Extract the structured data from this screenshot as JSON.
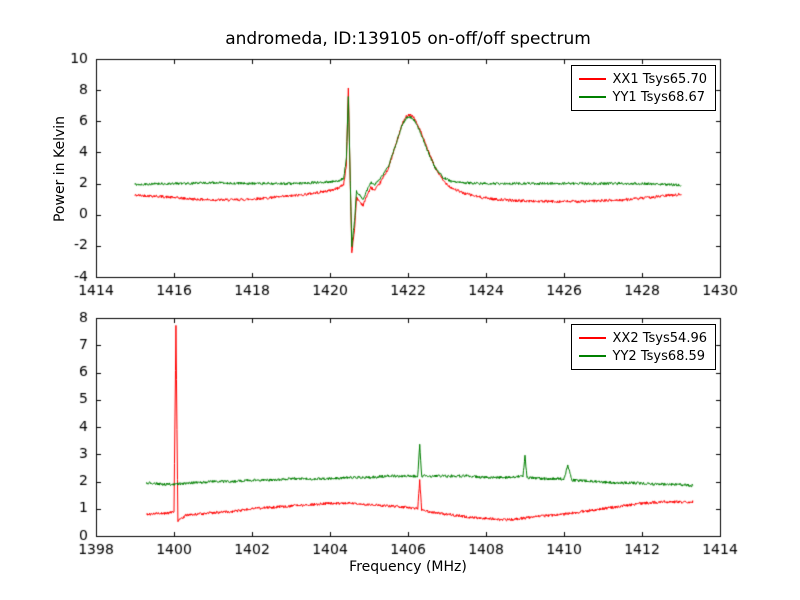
{
  "title": "andromeda, ID:139105 on-off/off spectrum",
  "chart_data": [
    {
      "type": "line",
      "title": "andromeda, ID:139105 on-off/off spectrum",
      "xlabel": "",
      "ylabel": "Power in Kelvin",
      "xlim": [
        1414,
        1430
      ],
      "ylim": [
        -4,
        10
      ],
      "xticks": [
        1414,
        1416,
        1418,
        1420,
        1422,
        1424,
        1426,
        1428,
        1430
      ],
      "yticks": [
        -4,
        -2,
        0,
        2,
        4,
        6,
        8,
        10
      ],
      "grid": false,
      "legend_position": "upper right",
      "series": [
        {
          "name": "XX1 Tsys65.70",
          "color": "#ff0000",
          "noise": 0.09,
          "keypoints": [
            [
              1415.0,
              1.25
            ],
            [
              1415.5,
              1.2
            ],
            [
              1416.0,
              1.1
            ],
            [
              1416.5,
              1.0
            ],
            [
              1417.0,
              0.95
            ],
            [
              1417.5,
              0.95
            ],
            [
              1418.0,
              1.0
            ],
            [
              1418.5,
              1.1
            ],
            [
              1419.0,
              1.2
            ],
            [
              1419.5,
              1.35
            ],
            [
              1420.0,
              1.55
            ],
            [
              1420.2,
              1.7
            ],
            [
              1420.35,
              1.95
            ],
            [
              1420.42,
              3.2
            ],
            [
              1420.47,
              8.2
            ],
            [
              1420.52,
              2.0
            ],
            [
              1420.56,
              -2.4
            ],
            [
              1420.63,
              -0.9
            ],
            [
              1420.68,
              1.1
            ],
            [
              1420.76,
              0.85
            ],
            [
              1420.85,
              0.6
            ],
            [
              1420.95,
              1.25
            ],
            [
              1421.05,
              1.75
            ],
            [
              1421.15,
              1.55
            ],
            [
              1421.3,
              2.1
            ],
            [
              1421.5,
              3.0
            ],
            [
              1421.7,
              4.6
            ],
            [
              1421.85,
              5.8
            ],
            [
              1421.95,
              6.3
            ],
            [
              1422.05,
              6.45
            ],
            [
              1422.15,
              6.25
            ],
            [
              1422.3,
              5.5
            ],
            [
              1422.5,
              4.2
            ],
            [
              1422.7,
              3.0
            ],
            [
              1422.9,
              2.2
            ],
            [
              1423.1,
              1.75
            ],
            [
              1423.4,
              1.4
            ],
            [
              1423.8,
              1.15
            ],
            [
              1424.2,
              1.0
            ],
            [
              1424.8,
              0.9
            ],
            [
              1425.5,
              0.85
            ],
            [
              1426.5,
              0.85
            ],
            [
              1427.5,
              0.95
            ],
            [
              1428.2,
              1.1
            ],
            [
              1428.7,
              1.25
            ],
            [
              1429.0,
              1.3
            ]
          ]
        },
        {
          "name": "YY1 Tsys68.67",
          "color": "#008000",
          "noise": 0.08,
          "keypoints": [
            [
              1415.0,
              1.95
            ],
            [
              1416.0,
              2.0
            ],
            [
              1417.0,
              2.05
            ],
            [
              1418.0,
              2.0
            ],
            [
              1419.0,
              2.0
            ],
            [
              1419.5,
              2.05
            ],
            [
              1420.0,
              2.1
            ],
            [
              1420.2,
              2.15
            ],
            [
              1420.35,
              2.35
            ],
            [
              1420.42,
              3.6
            ],
            [
              1420.47,
              7.6
            ],
            [
              1420.52,
              2.2
            ],
            [
              1420.56,
              -2.0
            ],
            [
              1420.63,
              -0.4
            ],
            [
              1420.68,
              1.5
            ],
            [
              1420.76,
              1.25
            ],
            [
              1420.85,
              1.0
            ],
            [
              1420.95,
              1.6
            ],
            [
              1421.05,
              2.05
            ],
            [
              1421.15,
              1.95
            ],
            [
              1421.3,
              2.35
            ],
            [
              1421.5,
              3.1
            ],
            [
              1421.7,
              4.6
            ],
            [
              1421.85,
              5.75
            ],
            [
              1421.95,
              6.2
            ],
            [
              1422.05,
              6.3
            ],
            [
              1422.15,
              6.1
            ],
            [
              1422.3,
              5.4
            ],
            [
              1422.5,
              4.1
            ],
            [
              1422.7,
              3.0
            ],
            [
              1422.9,
              2.4
            ],
            [
              1423.1,
              2.15
            ],
            [
              1423.4,
              2.05
            ],
            [
              1424.0,
              2.0
            ],
            [
              1425.0,
              2.0
            ],
            [
              1426.0,
              2.0
            ],
            [
              1427.0,
              2.0
            ],
            [
              1428.0,
              2.0
            ],
            [
              1428.5,
              1.95
            ],
            [
              1429.0,
              1.9
            ]
          ]
        }
      ]
    },
    {
      "type": "line",
      "title": "",
      "xlabel": "Frequency (MHz)",
      "ylabel": "",
      "xlim": [
        1398,
        1414
      ],
      "ylim": [
        0,
        8
      ],
      "xticks": [
        1398,
        1400,
        1402,
        1404,
        1406,
        1408,
        1410,
        1412,
        1414
      ],
      "yticks": [
        0,
        1,
        2,
        3,
        4,
        5,
        6,
        7,
        8
      ],
      "grid": false,
      "legend_position": "upper right",
      "series": [
        {
          "name": "XX2 Tsys54.96",
          "color": "#ff0000",
          "noise": 0.05,
          "keypoints": [
            [
              1399.3,
              0.8
            ],
            [
              1399.6,
              0.82
            ],
            [
              1399.9,
              0.85
            ],
            [
              1400.0,
              0.9
            ],
            [
              1400.05,
              7.7
            ],
            [
              1400.1,
              0.55
            ],
            [
              1400.3,
              0.75
            ],
            [
              1400.6,
              0.8
            ],
            [
              1401.0,
              0.85
            ],
            [
              1401.5,
              0.9
            ],
            [
              1402.0,
              1.0
            ],
            [
              1402.5,
              1.05
            ],
            [
              1403.0,
              1.1
            ],
            [
              1403.5,
              1.15
            ],
            [
              1404.0,
              1.2
            ],
            [
              1404.5,
              1.2
            ],
            [
              1405.0,
              1.15
            ],
            [
              1405.5,
              1.1
            ],
            [
              1406.0,
              1.05
            ],
            [
              1406.25,
              1.0
            ],
            [
              1406.3,
              2.05
            ],
            [
              1406.35,
              0.95
            ],
            [
              1406.7,
              0.85
            ],
            [
              1407.0,
              0.8
            ],
            [
              1407.5,
              0.7
            ],
            [
              1408.0,
              0.65
            ],
            [
              1408.4,
              0.6
            ],
            [
              1408.8,
              0.62
            ],
            [
              1409.2,
              0.7
            ],
            [
              1409.6,
              0.75
            ],
            [
              1410.0,
              0.8
            ],
            [
              1410.5,
              0.9
            ],
            [
              1411.0,
              1.0
            ],
            [
              1411.5,
              1.1
            ],
            [
              1412.0,
              1.2
            ],
            [
              1412.5,
              1.25
            ],
            [
              1413.0,
              1.25
            ],
            [
              1413.3,
              1.25
            ]
          ]
        },
        {
          "name": "YY2 Tsys68.59",
          "color": "#008000",
          "noise": 0.05,
          "keypoints": [
            [
              1399.3,
              1.95
            ],
            [
              1399.7,
              1.9
            ],
            [
              1400.0,
              1.9
            ],
            [
              1400.5,
              1.95
            ],
            [
              1401.0,
              2.0
            ],
            [
              1401.5,
              2.0
            ],
            [
              1402.0,
              2.05
            ],
            [
              1402.5,
              2.05
            ],
            [
              1403.0,
              2.1
            ],
            [
              1403.5,
              2.1
            ],
            [
              1404.0,
              2.1
            ],
            [
              1404.5,
              2.15
            ],
            [
              1405.0,
              2.15
            ],
            [
              1405.5,
              2.2
            ],
            [
              1406.0,
              2.2
            ],
            [
              1406.25,
              2.2
            ],
            [
              1406.3,
              3.35
            ],
            [
              1406.35,
              2.2
            ],
            [
              1407.0,
              2.2
            ],
            [
              1407.5,
              2.2
            ],
            [
              1408.0,
              2.15
            ],
            [
              1408.5,
              2.15
            ],
            [
              1408.95,
              2.2
            ],
            [
              1409.0,
              2.95
            ],
            [
              1409.05,
              2.15
            ],
            [
              1409.5,
              2.1
            ],
            [
              1410.0,
              2.1
            ],
            [
              1410.1,
              2.6
            ],
            [
              1410.2,
              2.05
            ],
            [
              1410.8,
              2.0
            ],
            [
              1411.3,
              1.95
            ],
            [
              1411.8,
              1.95
            ],
            [
              1412.3,
              1.9
            ],
            [
              1412.8,
              1.9
            ],
            [
              1413.3,
              1.85
            ]
          ]
        }
      ]
    }
  ]
}
